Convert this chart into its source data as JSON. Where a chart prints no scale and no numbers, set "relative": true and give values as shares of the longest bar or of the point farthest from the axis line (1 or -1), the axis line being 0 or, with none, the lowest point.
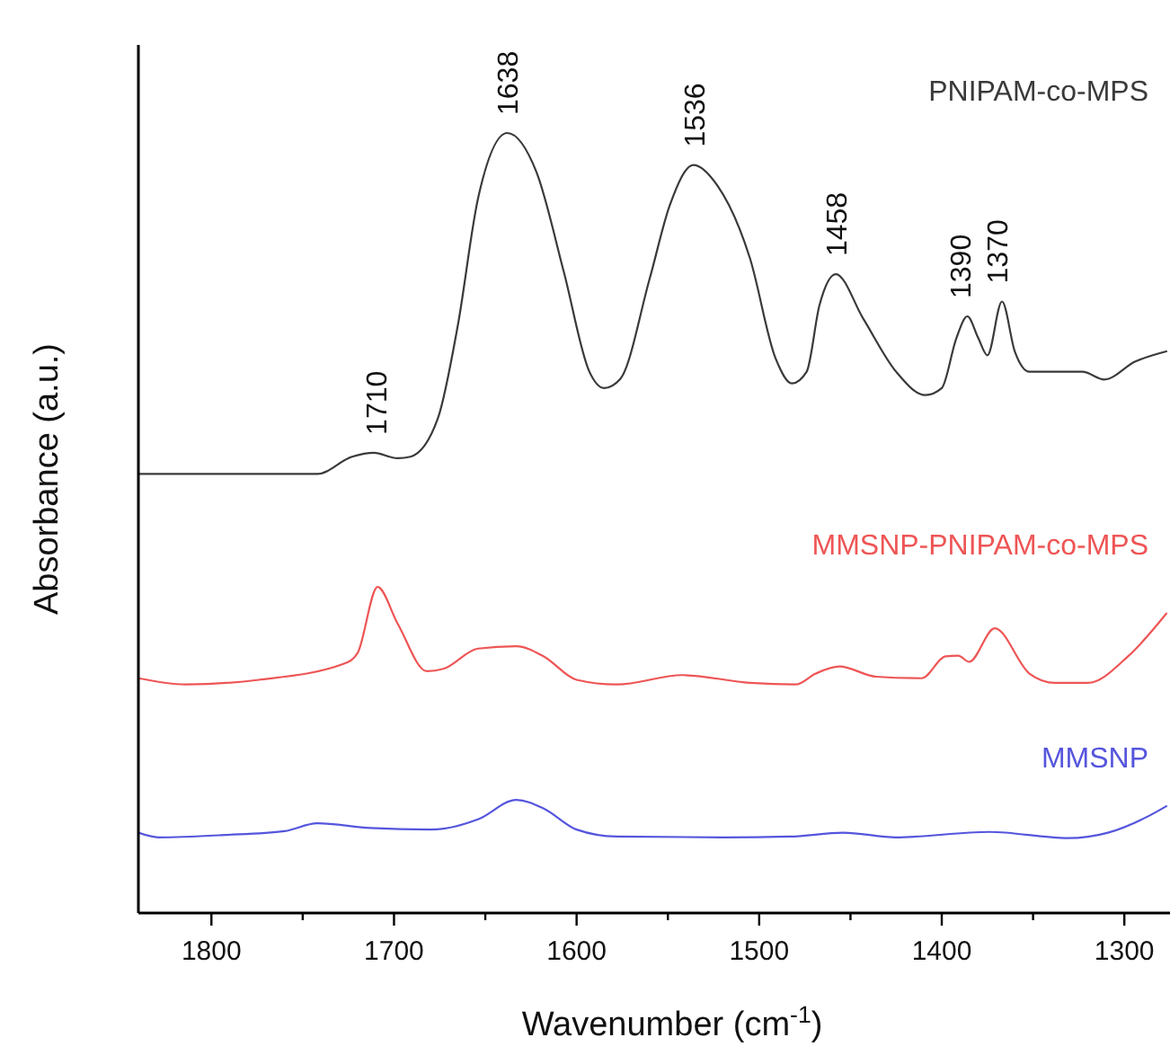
{
  "chart_data": {
    "type": "line",
    "relative": true,
    "tick_labels": "x",
    "xlabel": "Wavenumber (cm$^{-1}$)",
    "ylabel": "Absorbance (a.u.)",
    "xlim": [
      1840,
      1275
    ],
    "xticks": [
      1800,
      {
        "value": 1750,
        "label": null
      },
      1700,
      {
        "value": 1650,
        "label": null
      },
      1600,
      {
        "value": 1550,
        "label": null
      },
      1500,
      {
        "value": 1450,
        "label": null
      },
      1400,
      {
        "value": 1350,
        "label": null
      },
      1300
    ],
    "series": [
      {
        "name": "PNIPAM-co-MPS",
        "color": "#3a3a3a",
        "x": [
          1840,
          1742,
          1723,
          1711,
          1698,
          1691,
          1676,
          1665,
          1654,
          1638,
          1622,
          1607,
          1593,
          1585,
          1576,
          1560,
          1549,
          1536,
          1523,
          1505,
          1491,
          1482,
          1474,
          1467,
          1458,
          1443,
          1425,
          1409,
          1400,
          1392,
          1386,
          1380,
          1375,
          1367,
          1360,
          1352,
          1323,
          1311,
          1294,
          1277
        ],
        "values": [
          0.563,
          0.563,
          0.585,
          0.59,
          0.583,
          0.585,
          0.634,
          0.754,
          0.916,
          1.0,
          0.95,
          0.822,
          0.694,
          0.673,
          0.685,
          0.813,
          0.907,
          0.959,
          0.933,
          0.839,
          0.711,
          0.679,
          0.694,
          0.779,
          0.819,
          0.762,
          0.694,
          0.664,
          0.673,
          0.737,
          0.765,
          0.737,
          0.715,
          0.784,
          0.72,
          0.694,
          0.694,
          0.684,
          0.707,
          0.72
        ]
      },
      {
        "name": "MMSNP-PNIPAM-co-MPS",
        "color": "#ee5555",
        "x": [
          1840,
          1814,
          1774,
          1727,
          1720,
          1709,
          1698,
          1682,
          1673,
          1654,
          1633,
          1618,
          1600,
          1578,
          1542,
          1505,
          1480,
          1469,
          1456,
          1436,
          1411,
          1398,
          1391,
          1385,
          1371,
          1352,
          1338,
          1320,
          1298,
          1277
        ],
        "values": [
          0.301,
          0.293,
          0.299,
          0.32,
          0.333,
          0.418,
          0.371,
          0.31,
          0.313,
          0.339,
          0.342,
          0.329,
          0.299,
          0.293,
          0.305,
          0.295,
          0.293,
          0.307,
          0.316,
          0.303,
          0.301,
          0.329,
          0.33,
          0.322,
          0.365,
          0.307,
          0.295,
          0.295,
          0.329,
          0.384
        ]
      },
      {
        "name": "MMSNP",
        "color": "#5555dd",
        "x": [
          1840,
          1829,
          1793,
          1760,
          1742,
          1713,
          1680,
          1654,
          1633,
          1618,
          1600,
          1578,
          1520,
          1483,
          1454,
          1425,
          1374,
          1331,
          1309,
          1287,
          1277
        ],
        "values": [
          0.103,
          0.097,
          0.1,
          0.105,
          0.115,
          0.109,
          0.107,
          0.12,
          0.145,
          0.134,
          0.107,
          0.098,
          0.097,
          0.098,
          0.103,
          0.097,
          0.104,
          0.096,
          0.103,
          0.124,
          0.137
        ]
      }
    ],
    "annotations": [
      {
        "text": "1710",
        "x": 1710,
        "y": 0.59
      },
      {
        "text": "1638",
        "x": 1638,
        "y": 1.0
      },
      {
        "text": "1536",
        "x": 1536,
        "y": 0.959
      },
      {
        "text": "1458",
        "x": 1458,
        "y": 0.819
      },
      {
        "text": "1390",
        "x": 1390,
        "y": 0.765
      },
      {
        "text": "1370",
        "x": 1370,
        "y": 0.784
      }
    ]
  }
}
